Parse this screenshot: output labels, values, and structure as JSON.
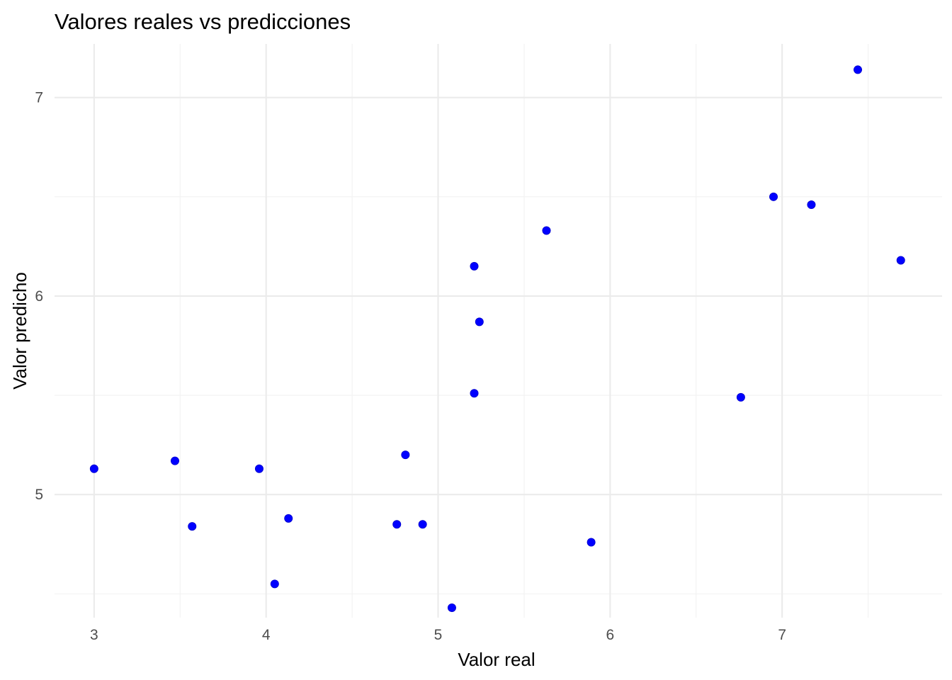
{
  "chart_data": {
    "type": "scatter",
    "title": "Valores reales vs predicciones",
    "xlabel": "Valor real",
    "ylabel": "Valor predicho",
    "xlim": [
      2.77,
      7.93
    ],
    "ylim": [
      4.38,
      7.27
    ],
    "x_ticks": [
      3,
      4,
      5,
      6,
      7
    ],
    "y_ticks": [
      5,
      6,
      7
    ],
    "x_minor_ticks": [
      3.5,
      4.5,
      5.5,
      6.5,
      7.5
    ],
    "y_minor_ticks": [
      4.5,
      5.5,
      6.5
    ],
    "grid": true,
    "legend": false,
    "point_color": "#0000ff",
    "points": [
      {
        "x": 3.0,
        "y": 5.13
      },
      {
        "x": 3.47,
        "y": 5.17
      },
      {
        "x": 3.57,
        "y": 4.84
      },
      {
        "x": 3.96,
        "y": 5.13
      },
      {
        "x": 4.05,
        "y": 4.55
      },
      {
        "x": 4.13,
        "y": 4.88
      },
      {
        "x": 4.76,
        "y": 4.85
      },
      {
        "x": 4.81,
        "y": 5.2
      },
      {
        "x": 4.91,
        "y": 4.85
      },
      {
        "x": 5.08,
        "y": 4.43
      },
      {
        "x": 5.21,
        "y": 5.51
      },
      {
        "x": 5.21,
        "y": 6.15
      },
      {
        "x": 5.24,
        "y": 5.87
      },
      {
        "x": 5.63,
        "y": 6.33
      },
      {
        "x": 5.89,
        "y": 4.76
      },
      {
        "x": 6.76,
        "y": 5.49
      },
      {
        "x": 6.95,
        "y": 6.5
      },
      {
        "x": 7.17,
        "y": 6.46
      },
      {
        "x": 7.44,
        "y": 7.14
      },
      {
        "x": 7.69,
        "y": 6.18
      }
    ]
  }
}
